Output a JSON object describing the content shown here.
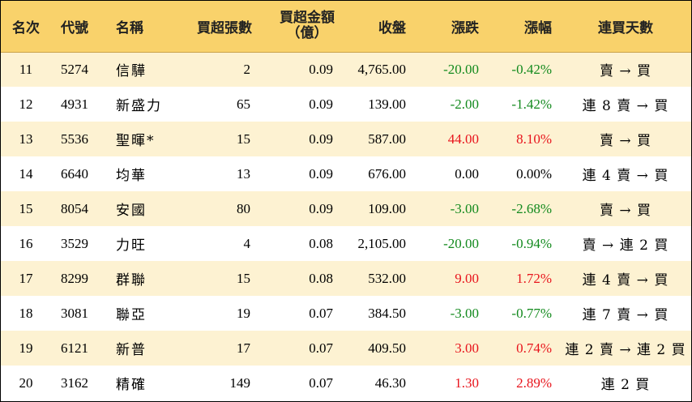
{
  "header": {
    "rank": "名次",
    "code": "代號",
    "name": "名稱",
    "net_buy_lots": "買超張數",
    "net_buy_amount_line1": "買超金額",
    "net_buy_amount_line2": "（億）",
    "close": "收盤",
    "change": "漲跌",
    "pct_change": "漲幅",
    "consecutive_days": "連買天數"
  },
  "colors": {
    "header_bg": "#f9d26b",
    "stripe_bg": "#fdf2d2",
    "up": "#e8141c",
    "down": "#138a1e"
  },
  "rows": [
    {
      "rank": "11",
      "code": "5274",
      "name": "信驊",
      "lots": "2",
      "amount": "0.09",
      "close": "4,765.00",
      "change": "-20.00",
      "pct": "-0.42%",
      "days": "賣 → 買",
      "dir": "down"
    },
    {
      "rank": "12",
      "code": "4931",
      "name": "新盛力",
      "lots": "65",
      "amount": "0.09",
      "close": "139.00",
      "change": "-2.00",
      "pct": "-1.42%",
      "days": "連 8 賣 → 買",
      "dir": "down"
    },
    {
      "rank": "13",
      "code": "5536",
      "name": "聖暉*",
      "lots": "15",
      "amount": "0.09",
      "close": "587.00",
      "change": "44.00",
      "pct": "8.10%",
      "days": "賣 → 買",
      "dir": "up"
    },
    {
      "rank": "14",
      "code": "6640",
      "name": "均華",
      "lots": "13",
      "amount": "0.09",
      "close": "676.00",
      "change": "0.00",
      "pct": "0.00%",
      "days": "連 4 賣 → 買",
      "dir": "flat"
    },
    {
      "rank": "15",
      "code": "8054",
      "name": "安國",
      "lots": "80",
      "amount": "0.09",
      "close": "109.00",
      "change": "-3.00",
      "pct": "-2.68%",
      "days": "賣 → 買",
      "dir": "down"
    },
    {
      "rank": "16",
      "code": "3529",
      "name": "力旺",
      "lots": "4",
      "amount": "0.08",
      "close": "2,105.00",
      "change": "-20.00",
      "pct": "-0.94%",
      "days": "賣 → 連 2 買",
      "dir": "down"
    },
    {
      "rank": "17",
      "code": "8299",
      "name": "群聯",
      "lots": "15",
      "amount": "0.08",
      "close": "532.00",
      "change": "9.00",
      "pct": "1.72%",
      "days": "連 4 賣 → 買",
      "dir": "up"
    },
    {
      "rank": "18",
      "code": "3081",
      "name": "聯亞",
      "lots": "19",
      "amount": "0.07",
      "close": "384.50",
      "change": "-3.00",
      "pct": "-0.77%",
      "days": "連 7 賣 → 買",
      "dir": "down"
    },
    {
      "rank": "19",
      "code": "6121",
      "name": "新普",
      "lots": "17",
      "amount": "0.07",
      "close": "409.50",
      "change": "3.00",
      "pct": "0.74%",
      "days": "連 2 賣 → 連 2 買",
      "dir": "up"
    },
    {
      "rank": "20",
      "code": "3162",
      "name": "精確",
      "lots": "149",
      "amount": "0.07",
      "close": "46.30",
      "change": "1.30",
      "pct": "2.89%",
      "days": "連 2 買",
      "dir": "up"
    }
  ]
}
